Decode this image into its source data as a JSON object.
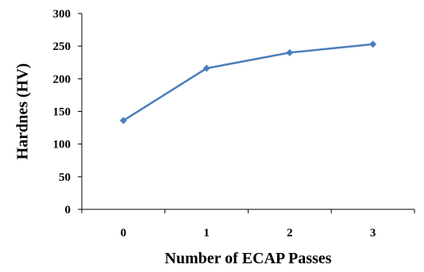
{
  "chart_data": {
    "type": "line",
    "title": "",
    "xlabel": "Number of ECAP Passes",
    "ylabel": "Hardnes (HV)",
    "categories": [
      "0",
      "1",
      "2",
      "3"
    ],
    "series": [
      {
        "values": [
          136,
          216,
          240,
          253
        ]
      }
    ],
    "ylim": [
      0,
      300
    ],
    "yticks": [
      0,
      50,
      100,
      150,
      200,
      250,
      300
    ],
    "grid": false,
    "legend": "none",
    "colors": {
      "line": "#4A7EBB",
      "marker": "#4A7EBB",
      "axis": "#000000"
    },
    "marker": "diamond"
  }
}
